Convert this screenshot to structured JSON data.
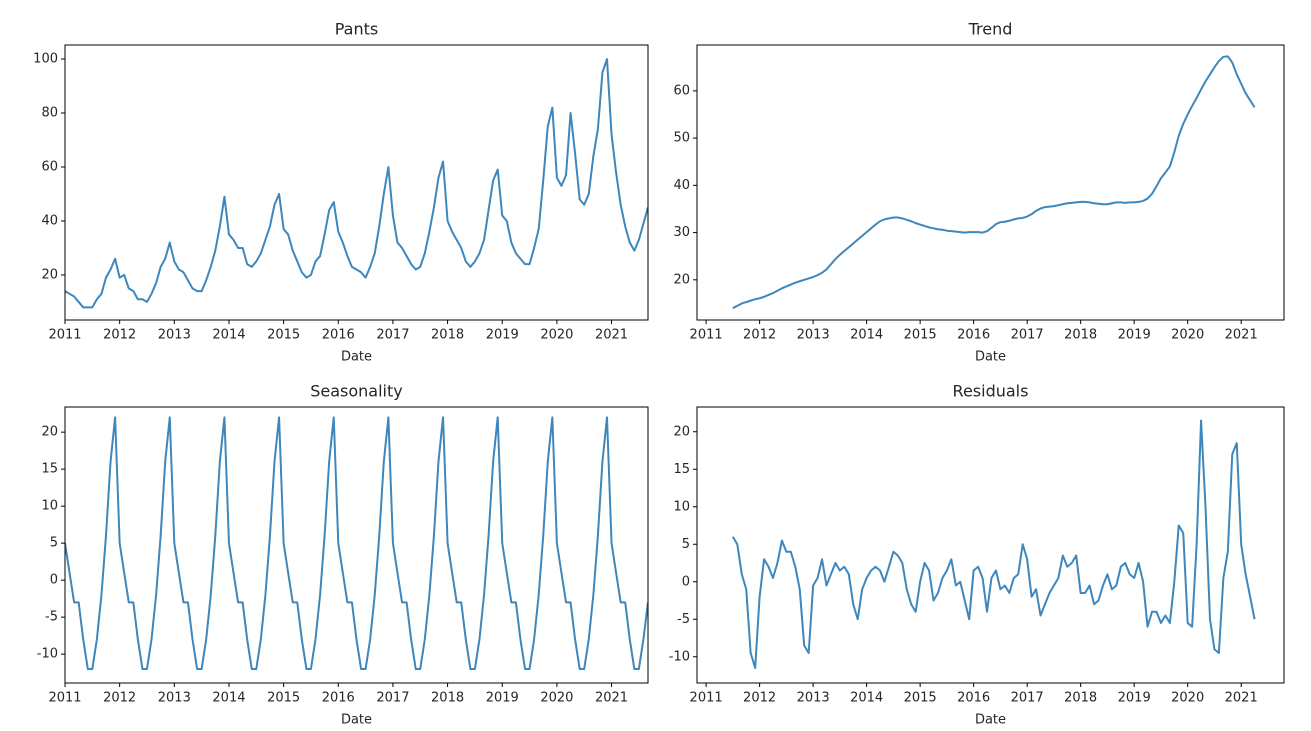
{
  "chart_data": [
    {
      "type": "line",
      "title": "Pants",
      "xlabel": "Date",
      "color": "#3d87bd",
      "xlim": [
        2011,
        2021.667
      ],
      "xticks": [
        2011,
        2012,
        2013,
        2014,
        2015,
        2016,
        2017,
        2018,
        2019,
        2020,
        2021
      ],
      "ylim": [
        3.3,
        105.2
      ],
      "yticks": [
        20,
        40,
        60,
        80,
        100
      ],
      "x": [
        2011,
        2011.083,
        2011.167,
        2011.25,
        2011.333,
        2011.417,
        2011.5,
        2011.583,
        2011.667,
        2011.75,
        2011.833,
        2011.917,
        2012,
        2012.083,
        2012.167,
        2012.25,
        2012.333,
        2012.417,
        2012.5,
        2012.583,
        2012.667,
        2012.75,
        2012.833,
        2012.917,
        2013,
        2013.083,
        2013.167,
        2013.25,
        2013.333,
        2013.417,
        2013.5,
        2013.583,
        2013.667,
        2013.75,
        2013.833,
        2013.917,
        2014,
        2014.083,
        2014.167,
        2014.25,
        2014.333,
        2014.417,
        2014.5,
        2014.583,
        2014.667,
        2014.75,
        2014.833,
        2014.917,
        2015,
        2015.083,
        2015.167,
        2015.25,
        2015.333,
        2015.417,
        2015.5,
        2015.583,
        2015.667,
        2015.75,
        2015.833,
        2015.917,
        2016,
        2016.083,
        2016.167,
        2016.25,
        2016.333,
        2016.417,
        2016.5,
        2016.583,
        2016.667,
        2016.75,
        2016.833,
        2016.917,
        2017,
        2017.083,
        2017.167,
        2017.25,
        2017.333,
        2017.417,
        2017.5,
        2017.583,
        2017.667,
        2017.75,
        2017.833,
        2017.917,
        2018,
        2018.083,
        2018.167,
        2018.25,
        2018.333,
        2018.417,
        2018.5,
        2018.583,
        2018.667,
        2018.75,
        2018.833,
        2018.917,
        2019,
        2019.083,
        2019.167,
        2019.25,
        2019.333,
        2019.417,
        2019.5,
        2019.583,
        2019.667,
        2019.75,
        2019.833,
        2019.917,
        2020,
        2020.083,
        2020.167,
        2020.25,
        2020.333,
        2020.417,
        2020.5,
        2020.583,
        2020.667,
        2020.75,
        2020.833,
        2020.917,
        2021,
        2021.083,
        2021.167,
        2021.25,
        2021.333,
        2021.417,
        2021.5,
        2021.583,
        2021.667
      ],
      "values": [
        14,
        13,
        12,
        10,
        8,
        8,
        8,
        11,
        13,
        19,
        22,
        26,
        19,
        20,
        15,
        14,
        11,
        11,
        10,
        13,
        17,
        23,
        26,
        32,
        25,
        22,
        21,
        18,
        15,
        14,
        14,
        18,
        23,
        29,
        38,
        49,
        35,
        33,
        30,
        30,
        24,
        23,
        25,
        28,
        33,
        38,
        46,
        50,
        37,
        35,
        29,
        25,
        21,
        19,
        20,
        25,
        27,
        35,
        44,
        47,
        36,
        32,
        27,
        23,
        22,
        21,
        19,
        23,
        28,
        38,
        50,
        60,
        42,
        32,
        30,
        27,
        24,
        22,
        23,
        28,
        36,
        45,
        56,
        62,
        40,
        36,
        33,
        30,
        25,
        23,
        25,
        28,
        33,
        44,
        55,
        59,
        42,
        40,
        32,
        28,
        26,
        24,
        24,
        30,
        37,
        55,
        75,
        82,
        56,
        53,
        57,
        80,
        65,
        48,
        46,
        50,
        64,
        74,
        95,
        100,
        72,
        58,
        46,
        38,
        32,
        29,
        33,
        39,
        45
      ]
    },
    {
      "type": "line",
      "title": "Trend",
      "xlabel": "Date",
      "color": "#3d87bd",
      "xlim": [
        2010.83,
        2021.8
      ],
      "xticks": [
        2011,
        2012,
        2013,
        2014,
        2015,
        2016,
        2017,
        2018,
        2019,
        2020,
        2021
      ],
      "ylim": [
        11.5,
        69.7
      ],
      "yticks": [
        20,
        30,
        40,
        50,
        60
      ],
      "x": [
        2011.5,
        2011.583,
        2011.667,
        2011.75,
        2011.833,
        2011.917,
        2012,
        2012.083,
        2012.167,
        2012.25,
        2012.333,
        2012.417,
        2012.5,
        2012.583,
        2012.667,
        2012.75,
        2012.833,
        2012.917,
        2013,
        2013.083,
        2013.167,
        2013.25,
        2013.333,
        2013.417,
        2013.5,
        2013.583,
        2013.667,
        2013.75,
        2013.833,
        2013.917,
        2014,
        2014.083,
        2014.167,
        2014.25,
        2014.333,
        2014.417,
        2014.5,
        2014.583,
        2014.667,
        2014.75,
        2014.833,
        2014.917,
        2015,
        2015.083,
        2015.167,
        2015.25,
        2015.333,
        2015.417,
        2015.5,
        2015.583,
        2015.667,
        2015.75,
        2015.833,
        2015.917,
        2016,
        2016.083,
        2016.167,
        2016.25,
        2016.333,
        2016.417,
        2016.5,
        2016.583,
        2016.667,
        2016.75,
        2016.833,
        2016.917,
        2017,
        2017.083,
        2017.167,
        2017.25,
        2017.333,
        2017.417,
        2017.5,
        2017.583,
        2017.667,
        2017.75,
        2017.833,
        2017.917,
        2018,
        2018.083,
        2018.167,
        2018.25,
        2018.333,
        2018.417,
        2018.5,
        2018.583,
        2018.667,
        2018.75,
        2018.833,
        2018.917,
        2019,
        2019.083,
        2019.167,
        2019.25,
        2019.333,
        2019.417,
        2019.5,
        2019.583,
        2019.667,
        2019.75,
        2019.833,
        2019.917,
        2020,
        2020.083,
        2020.167,
        2020.25,
        2020.333,
        2020.417,
        2020.5,
        2020.583,
        2020.667,
        2020.75,
        2020.833,
        2020.917,
        2021,
        2021.083,
        2021.167,
        2021.25
      ],
      "values": [
        14.0,
        14.5,
        15.0,
        15.3,
        15.6,
        15.9,
        16.1,
        16.4,
        16.8,
        17.2,
        17.7,
        18.2,
        18.6,
        19.0,
        19.4,
        19.7,
        20.0,
        20.3,
        20.6,
        21.0,
        21.5,
        22.2,
        23.3,
        24.4,
        25.3,
        26.1,
        26.9,
        27.7,
        28.5,
        29.3,
        30.1,
        30.9,
        31.7,
        32.4,
        32.8,
        33.0,
        33.2,
        33.2,
        33.0,
        32.7,
        32.4,
        32.0,
        31.7,
        31.4,
        31.1,
        30.9,
        30.7,
        30.6,
        30.4,
        30.3,
        30.2,
        30.1,
        30.0,
        30.1,
        30.1,
        30.1,
        30.0,
        30.3,
        31.0,
        31.8,
        32.2,
        32.3,
        32.5,
        32.8,
        33.0,
        33.1,
        33.4,
        33.9,
        34.6,
        35.1,
        35.4,
        35.5,
        35.6,
        35.8,
        36.0,
        36.2,
        36.3,
        36.4,
        36.5,
        36.5,
        36.4,
        36.2,
        36.1,
        36.0,
        36.0,
        36.2,
        36.4,
        36.4,
        36.3,
        36.4,
        36.4,
        36.5,
        36.7,
        37.2,
        38.2,
        39.8,
        41.5,
        42.7,
        44.0,
        47.0,
        50.5,
        53.0,
        55.0,
        56.8,
        58.5,
        60.3,
        62.0,
        63.5,
        65.0,
        66.3,
        67.2,
        67.3,
        66.0,
        63.5,
        61.5,
        59.5,
        58.0,
        56.5
      ]
    },
    {
      "type": "line",
      "title": "Seasonality",
      "xlabel": "Date",
      "color": "#3d87bd",
      "xlim": [
        2011,
        2021.667
      ],
      "xticks": [
        2011,
        2012,
        2013,
        2014,
        2015,
        2016,
        2017,
        2018,
        2019,
        2020,
        2021
      ],
      "ylim": [
        -13.9,
        23.4
      ],
      "yticks": [
        -10,
        -5,
        0,
        5,
        10,
        15,
        20
      ],
      "x": [
        2011,
        2011.083,
        2011.167,
        2011.25,
        2011.333,
        2011.417,
        2011.5,
        2011.583,
        2011.667,
        2011.75,
        2011.833,
        2011.917,
        2012,
        2012.083,
        2012.167,
        2012.25,
        2012.333,
        2012.417,
        2012.5,
        2012.583,
        2012.667,
        2012.75,
        2012.833,
        2012.917,
        2013,
        2013.083,
        2013.167,
        2013.25,
        2013.333,
        2013.417,
        2013.5,
        2013.583,
        2013.667,
        2013.75,
        2013.833,
        2013.917,
        2014,
        2014.083,
        2014.167,
        2014.25,
        2014.333,
        2014.417,
        2014.5,
        2014.583,
        2014.667,
        2014.75,
        2014.833,
        2014.917,
        2015,
        2015.083,
        2015.167,
        2015.25,
        2015.333,
        2015.417,
        2015.5,
        2015.583,
        2015.667,
        2015.75,
        2015.833,
        2015.917,
        2016,
        2016.083,
        2016.167,
        2016.25,
        2016.333,
        2016.417,
        2016.5,
        2016.583,
        2016.667,
        2016.75,
        2016.833,
        2016.917,
        2017,
        2017.083,
        2017.167,
        2017.25,
        2017.333,
        2017.417,
        2017.5,
        2017.583,
        2017.667,
        2017.75,
        2017.833,
        2017.917,
        2018,
        2018.083,
        2018.167,
        2018.25,
        2018.333,
        2018.417,
        2018.5,
        2018.583,
        2018.667,
        2018.75,
        2018.833,
        2018.917,
        2019,
        2019.083,
        2019.167,
        2019.25,
        2019.333,
        2019.417,
        2019.5,
        2019.583,
        2019.667,
        2019.75,
        2019.833,
        2019.917,
        2020,
        2020.083,
        2020.167,
        2020.25,
        2020.333,
        2020.417,
        2020.5,
        2020.583,
        2020.667,
        2020.75,
        2020.833,
        2020.917,
        2021,
        2021.083,
        2021.167,
        2021.25,
        2021.333,
        2021.417,
        2021.5,
        2021.583,
        2021.667
      ],
      "values": [
        5,
        1,
        -3,
        -3,
        -8,
        -12,
        -12,
        -8,
        -2,
        6,
        16,
        22,
        5,
        1,
        -3,
        -3,
        -8,
        -12,
        -12,
        -8,
        -2,
        6,
        16,
        22,
        5,
        1,
        -3,
        -3,
        -8,
        -12,
        -12,
        -8,
        -2,
        6,
        16,
        22,
        5,
        1,
        -3,
        -3,
        -8,
        -12,
        -12,
        -8,
        -2,
        6,
        16,
        22,
        5,
        1,
        -3,
        -3,
        -8,
        -12,
        -12,
        -8,
        -2,
        6,
        16,
        22,
        5,
        1,
        -3,
        -3,
        -8,
        -12,
        -12,
        -8,
        -2,
        6,
        16,
        22,
        5,
        1,
        -3,
        -3,
        -8,
        -12,
        -12,
        -8,
        -2,
        6,
        16,
        22,
        5,
        1,
        -3,
        -3,
        -8,
        -12,
        -12,
        -8,
        -2,
        6,
        16,
        22,
        5,
        1,
        -3,
        -3,
        -8,
        -12,
        -12,
        -8,
        -2,
        6,
        16,
        22,
        5,
        1,
        -3,
        -3,
        -8,
        -12,
        -12,
        -8,
        -2,
        6,
        16,
        22,
        5,
        1,
        -3,
        -3,
        -8,
        -12,
        -12,
        -8,
        -3
      ]
    },
    {
      "type": "line",
      "title": "Residuals",
      "xlabel": "Date",
      "color": "#3d87bd",
      "xlim": [
        2010.83,
        2021.8
      ],
      "xticks": [
        2011,
        2012,
        2013,
        2014,
        2015,
        2016,
        2017,
        2018,
        2019,
        2020,
        2021
      ],
      "ylim": [
        -13.5,
        23.3
      ],
      "yticks": [
        -10,
        -5,
        0,
        5,
        10,
        15,
        20
      ],
      "x": [
        2011.5,
        2011.583,
        2011.667,
        2011.75,
        2011.833,
        2011.917,
        2012,
        2012.083,
        2012.167,
        2012.25,
        2012.333,
        2012.417,
        2012.5,
        2012.583,
        2012.667,
        2012.75,
        2012.833,
        2012.917,
        2013,
        2013.083,
        2013.167,
        2013.25,
        2013.333,
        2013.417,
        2013.5,
        2013.583,
        2013.667,
        2013.75,
        2013.833,
        2013.917,
        2014,
        2014.083,
        2014.167,
        2014.25,
        2014.333,
        2014.417,
        2014.5,
        2014.583,
        2014.667,
        2014.75,
        2014.833,
        2014.917,
        2015,
        2015.083,
        2015.167,
        2015.25,
        2015.333,
        2015.417,
        2015.5,
        2015.583,
        2015.667,
        2015.75,
        2015.833,
        2015.917,
        2016,
        2016.083,
        2016.167,
        2016.25,
        2016.333,
        2016.417,
        2016.5,
        2016.583,
        2016.667,
        2016.75,
        2016.833,
        2016.917,
        2017,
        2017.083,
        2017.167,
        2017.25,
        2017.333,
        2017.417,
        2017.5,
        2017.583,
        2017.667,
        2017.75,
        2017.833,
        2017.917,
        2018,
        2018.083,
        2018.167,
        2018.25,
        2018.333,
        2018.417,
        2018.5,
        2018.583,
        2018.667,
        2018.75,
        2018.833,
        2018.917,
        2019,
        2019.083,
        2019.167,
        2019.25,
        2019.333,
        2019.417,
        2019.5,
        2019.583,
        2019.667,
        2019.75,
        2019.833,
        2019.917,
        2020,
        2020.083,
        2020.167,
        2020.25,
        2020.333,
        2020.417,
        2020.5,
        2020.583,
        2020.667,
        2020.75,
        2020.833,
        2020.917,
        2021,
        2021.083,
        2021.167,
        2021.25
      ],
      "values": [
        6,
        5,
        1,
        -1,
        -9.5,
        -11.5,
        -2,
        3,
        2,
        0.5,
        2.5,
        5.5,
        4,
        4,
        2,
        -1,
        -8.5,
        -9.5,
        -0.5,
        0.5,
        3,
        -0.5,
        1,
        2.5,
        1.5,
        2,
        1,
        -3,
        -5,
        -1,
        0.5,
        1.5,
        2,
        1.5,
        0,
        2,
        4,
        3.5,
        2.5,
        -1,
        -3,
        -4,
        0,
        2.5,
        1.5,
        -2.5,
        -1.5,
        0.5,
        1.5,
        3,
        -0.5,
        0,
        -2.5,
        -5,
        1.5,
        2,
        0.5,
        -4,
        0.5,
        1.5,
        -1,
        -0.5,
        -1.5,
        0.5,
        1,
        5,
        3,
        -2,
        -1,
        -4.5,
        -3,
        -1.5,
        -0.5,
        0.5,
        3.5,
        2,
        2.5,
        3.5,
        -1.5,
        -1.5,
        -0.5,
        -3,
        -2.5,
        -0.5,
        1,
        -1,
        -0.5,
        2,
        2.5,
        1,
        0.5,
        2.5,
        0,
        -6,
        -4,
        -4,
        -5.5,
        -4.5,
        -5.5,
        0,
        7.5,
        6.5,
        -5.5,
        -6,
        5,
        21.5,
        10,
        -5,
        -9,
        -9.5,
        0.5,
        4,
        17,
        18.5,
        5,
        1,
        -2,
        -5
      ]
    }
  ]
}
